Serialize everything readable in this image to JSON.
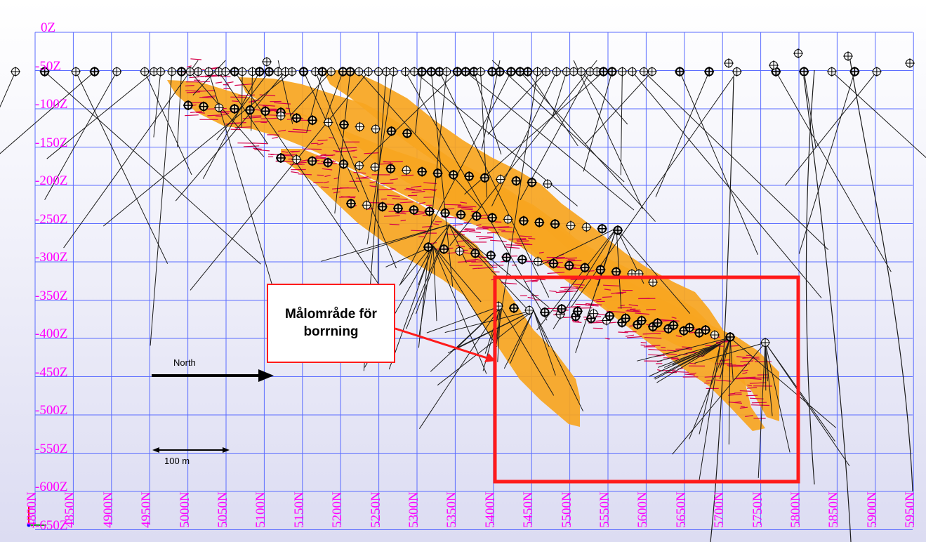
{
  "section": {
    "elevation_labels": [
      "0Z",
      "-50Z",
      "-100Z",
      "-150Z",
      "-200Z",
      "-250Z",
      "-300Z",
      "-350Z",
      "-400Z",
      "-450Z",
      "-500Z",
      "-550Z",
      "-600Z",
      "-650Z"
    ],
    "northing_labels": [
      "4800N",
      "4850N",
      "4900N",
      "4950N",
      "5000N",
      "5050N",
      "5100N",
      "5150N",
      "5200N",
      "5250N",
      "5300N",
      "5350N",
      "5400N",
      "5450N",
      "5500N",
      "5550N",
      "5600N",
      "5650N",
      "5700N",
      "5750N",
      "5800N",
      "5850N",
      "5900N",
      "5950N"
    ],
    "target_callout": "Målområde för borrning",
    "north_arrow_label": "North",
    "scale_bar_label": "100 m"
  },
  "colors": {
    "grid": "#5a6cff",
    "axis_label": "#ff00ff",
    "ore_body": "#f7a51f",
    "assay": "#d6004a",
    "drillhole": "#1a1a1a",
    "highlight": "#ff1a1a"
  },
  "icons": [
    "collar-crosshair-icon",
    "north-arrow-icon",
    "scale-bar-icon",
    "axis-triad-icon"
  ]
}
